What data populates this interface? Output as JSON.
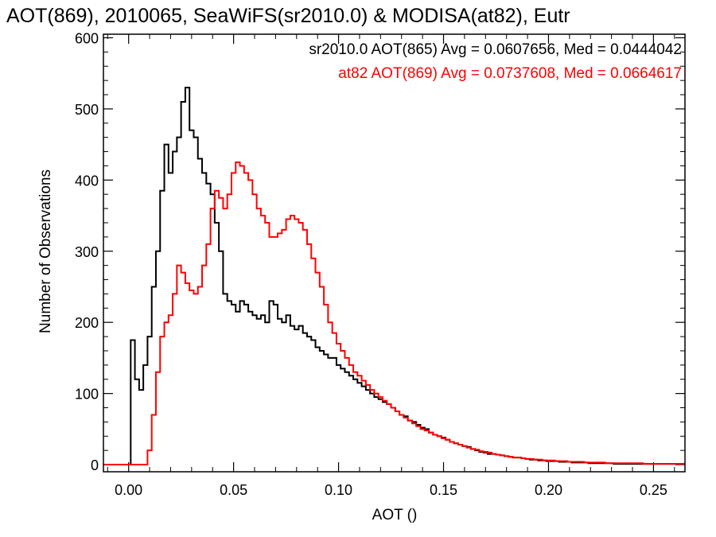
{
  "chart_data": {
    "type": "line",
    "title": "AOT(869), 2010065, SeaWiFS(sr2010.0) & MODISA(at82), Eutr",
    "xlabel": "AOT ()",
    "ylabel": "Number of Observations",
    "xlim": [
      -0.012,
      0.265
    ],
    "ylim": [
      -10,
      605
    ],
    "xticks": [
      0.0,
      0.05,
      0.1,
      0.15,
      0.2,
      0.25
    ],
    "xtick_labels": [
      "0.00",
      "0.05",
      "0.10",
      "0.15",
      "0.20",
      "0.25"
    ],
    "yticks": [
      0,
      100,
      200,
      300,
      400,
      500,
      600
    ],
    "ytick_labels": [
      "0",
      "100",
      "200",
      "300",
      "400",
      "500",
      "600"
    ],
    "grid": false,
    "legend_position": "top-right",
    "legend": [
      "sr2010.0 AOT(865) Avg = 0.0607656, Med = 0.0444042",
      "at82 AOT(869) Avg = 0.0737608, Med = 0.0664617"
    ],
    "series": [
      {
        "color": "#000000",
        "step": true,
        "points": [
          [
            -0.012,
            0
          ],
          [
            0.0,
            0
          ],
          [
            0.001,
            175
          ],
          [
            0.003,
            120
          ],
          [
            0.005,
            105
          ],
          [
            0.007,
            140
          ],
          [
            0.009,
            180
          ],
          [
            0.011,
            250
          ],
          [
            0.013,
            300
          ],
          [
            0.015,
            385
          ],
          [
            0.017,
            450
          ],
          [
            0.019,
            410
          ],
          [
            0.021,
            440
          ],
          [
            0.023,
            460
          ],
          [
            0.025,
            510
          ],
          [
            0.027,
            530
          ],
          [
            0.029,
            470
          ],
          [
            0.031,
            460
          ],
          [
            0.033,
            430
          ],
          [
            0.035,
            410
          ],
          [
            0.037,
            395
          ],
          [
            0.039,
            380
          ],
          [
            0.041,
            340
          ],
          [
            0.043,
            300
          ],
          [
            0.045,
            240
          ],
          [
            0.047,
            230
          ],
          [
            0.049,
            225
          ],
          [
            0.051,
            215
          ],
          [
            0.053,
            230
          ],
          [
            0.055,
            225
          ],
          [
            0.057,
            215
          ],
          [
            0.059,
            210
          ],
          [
            0.061,
            205
          ],
          [
            0.063,
            210
          ],
          [
            0.065,
            200
          ],
          [
            0.067,
            230
          ],
          [
            0.069,
            225
          ],
          [
            0.071,
            205
          ],
          [
            0.073,
            200
          ],
          [
            0.075,
            210
          ],
          [
            0.077,
            195
          ],
          [
            0.079,
            190
          ],
          [
            0.081,
            195
          ],
          [
            0.083,
            185
          ],
          [
            0.085,
            180
          ],
          [
            0.087,
            175
          ],
          [
            0.089,
            165
          ],
          [
            0.091,
            160
          ],
          [
            0.093,
            155
          ],
          [
            0.095,
            150
          ],
          [
            0.097,
            150
          ],
          [
            0.099,
            140
          ],
          [
            0.101,
            135
          ],
          [
            0.103,
            130
          ],
          [
            0.105,
            125
          ],
          [
            0.107,
            120
          ],
          [
            0.109,
            115
          ],
          [
            0.111,
            110
          ],
          [
            0.113,
            105
          ],
          [
            0.115,
            100
          ],
          [
            0.117,
            95
          ],
          [
            0.119,
            92
          ],
          [
            0.121,
            88
          ],
          [
            0.123,
            85
          ],
          [
            0.125,
            80
          ],
          [
            0.127,
            75
          ],
          [
            0.129,
            70
          ],
          [
            0.131,
            68
          ],
          [
            0.133,
            62
          ],
          [
            0.135,
            60
          ],
          [
            0.137,
            56
          ],
          [
            0.139,
            52
          ],
          [
            0.141,
            50
          ],
          [
            0.143,
            45
          ],
          [
            0.145,
            42
          ],
          [
            0.147,
            40
          ],
          [
            0.149,
            38
          ],
          [
            0.151,
            35
          ],
          [
            0.153,
            32
          ],
          [
            0.155,
            30
          ],
          [
            0.157,
            28
          ],
          [
            0.159,
            26
          ],
          [
            0.161,
            25
          ],
          [
            0.163,
            22
          ],
          [
            0.165,
            20
          ],
          [
            0.167,
            18
          ],
          [
            0.169,
            17
          ],
          [
            0.171,
            15
          ],
          [
            0.173,
            15
          ],
          [
            0.175,
            14
          ],
          [
            0.177,
            13
          ],
          [
            0.179,
            12
          ],
          [
            0.181,
            11
          ],
          [
            0.183,
            10
          ],
          [
            0.185,
            10
          ],
          [
            0.187,
            9
          ],
          [
            0.189,
            8
          ],
          [
            0.191,
            7
          ],
          [
            0.193,
            7
          ],
          [
            0.195,
            6
          ],
          [
            0.197,
            6
          ],
          [
            0.199,
            5
          ],
          [
            0.201,
            5
          ],
          [
            0.203,
            5
          ],
          [
            0.205,
            4
          ],
          [
            0.207,
            4
          ],
          [
            0.209,
            4
          ],
          [
            0.211,
            3
          ],
          [
            0.213,
            3
          ],
          [
            0.215,
            3
          ],
          [
            0.217,
            3
          ],
          [
            0.219,
            2
          ],
          [
            0.221,
            2
          ],
          [
            0.223,
            2
          ],
          [
            0.225,
            2
          ],
          [
            0.227,
            2
          ],
          [
            0.229,
            2
          ],
          [
            0.231,
            1
          ],
          [
            0.233,
            1
          ],
          [
            0.235,
            1
          ],
          [
            0.237,
            1
          ],
          [
            0.239,
            1
          ],
          [
            0.241,
            1
          ],
          [
            0.243,
            1
          ],
          [
            0.245,
            1
          ],
          [
            0.247,
            1
          ],
          [
            0.249,
            1
          ],
          [
            0.251,
            1
          ],
          [
            0.253,
            1
          ],
          [
            0.255,
            1
          ],
          [
            0.257,
            1
          ],
          [
            0.259,
            1
          ],
          [
            0.261,
            1
          ],
          [
            0.263,
            1
          ],
          [
            0.265,
            1
          ]
        ]
      },
      {
        "color": "#ff0000",
        "step": true,
        "points": [
          [
            -0.012,
            0
          ],
          [
            0.0,
            0
          ],
          [
            0.003,
            0
          ],
          [
            0.005,
            0
          ],
          [
            0.007,
            0
          ],
          [
            0.009,
            20
          ],
          [
            0.011,
            70
          ],
          [
            0.013,
            130
          ],
          [
            0.015,
            180
          ],
          [
            0.017,
            200
          ],
          [
            0.019,
            210
          ],
          [
            0.021,
            240
          ],
          [
            0.023,
            280
          ],
          [
            0.025,
            270
          ],
          [
            0.027,
            255
          ],
          [
            0.029,
            245
          ],
          [
            0.031,
            240
          ],
          [
            0.033,
            250
          ],
          [
            0.035,
            280
          ],
          [
            0.037,
            310
          ],
          [
            0.039,
            360
          ],
          [
            0.041,
            385
          ],
          [
            0.043,
            375
          ],
          [
            0.045,
            360
          ],
          [
            0.047,
            380
          ],
          [
            0.049,
            410
          ],
          [
            0.051,
            425
          ],
          [
            0.053,
            420
          ],
          [
            0.055,
            410
          ],
          [
            0.057,
            400
          ],
          [
            0.059,
            380
          ],
          [
            0.061,
            360
          ],
          [
            0.063,
            350
          ],
          [
            0.065,
            340
          ],
          [
            0.067,
            320
          ],
          [
            0.069,
            320
          ],
          [
            0.071,
            325
          ],
          [
            0.073,
            330
          ],
          [
            0.075,
            345
          ],
          [
            0.077,
            350
          ],
          [
            0.079,
            345
          ],
          [
            0.081,
            340
          ],
          [
            0.083,
            330
          ],
          [
            0.085,
            310
          ],
          [
            0.087,
            290
          ],
          [
            0.089,
            270
          ],
          [
            0.091,
            250
          ],
          [
            0.093,
            225
          ],
          [
            0.095,
            200
          ],
          [
            0.097,
            185
          ],
          [
            0.099,
            170
          ],
          [
            0.101,
            160
          ],
          [
            0.103,
            150
          ],
          [
            0.105,
            140
          ],
          [
            0.107,
            130
          ],
          [
            0.109,
            125
          ],
          [
            0.111,
            118
          ],
          [
            0.113,
            112
          ],
          [
            0.115,
            105
          ],
          [
            0.117,
            100
          ],
          [
            0.119,
            95
          ],
          [
            0.121,
            90
          ],
          [
            0.123,
            85
          ],
          [
            0.125,
            80
          ],
          [
            0.127,
            75
          ],
          [
            0.129,
            70
          ],
          [
            0.131,
            66
          ],
          [
            0.133,
            62
          ],
          [
            0.135,
            58
          ],
          [
            0.137,
            54
          ],
          [
            0.139,
            50
          ],
          [
            0.141,
            48
          ],
          [
            0.143,
            45
          ],
          [
            0.145,
            42
          ],
          [
            0.147,
            40
          ],
          [
            0.149,
            37
          ],
          [
            0.151,
            35
          ],
          [
            0.153,
            32
          ],
          [
            0.155,
            30
          ],
          [
            0.157,
            28
          ],
          [
            0.159,
            26
          ],
          [
            0.161,
            24
          ],
          [
            0.163,
            22
          ],
          [
            0.165,
            21
          ],
          [
            0.167,
            19
          ],
          [
            0.169,
            18
          ],
          [
            0.171,
            17
          ],
          [
            0.173,
            15
          ],
          [
            0.175,
            14
          ],
          [
            0.177,
            13
          ],
          [
            0.179,
            12
          ],
          [
            0.181,
            11
          ],
          [
            0.183,
            10
          ],
          [
            0.185,
            10
          ],
          [
            0.187,
            9
          ],
          [
            0.189,
            8
          ],
          [
            0.191,
            8
          ],
          [
            0.193,
            7
          ],
          [
            0.195,
            7
          ],
          [
            0.197,
            6
          ],
          [
            0.199,
            6
          ],
          [
            0.201,
            6
          ],
          [
            0.203,
            5
          ],
          [
            0.205,
            5
          ],
          [
            0.207,
            5
          ],
          [
            0.209,
            4
          ],
          [
            0.211,
            4
          ],
          [
            0.213,
            4
          ],
          [
            0.215,
            4
          ],
          [
            0.217,
            3
          ],
          [
            0.219,
            3
          ],
          [
            0.221,
            3
          ],
          [
            0.223,
            3
          ],
          [
            0.225,
            3
          ],
          [
            0.227,
            2
          ],
          [
            0.229,
            2
          ],
          [
            0.231,
            2
          ],
          [
            0.233,
            2
          ],
          [
            0.235,
            2
          ],
          [
            0.237,
            2
          ],
          [
            0.239,
            2
          ],
          [
            0.241,
            2
          ],
          [
            0.243,
            2
          ],
          [
            0.245,
            1
          ],
          [
            0.247,
            1
          ],
          [
            0.249,
            1
          ],
          [
            0.251,
            1
          ],
          [
            0.253,
            1
          ],
          [
            0.255,
            1
          ],
          [
            0.257,
            1
          ],
          [
            0.259,
            1
          ],
          [
            0.261,
            1
          ],
          [
            0.263,
            1
          ],
          [
            0.265,
            1
          ]
        ]
      }
    ]
  }
}
